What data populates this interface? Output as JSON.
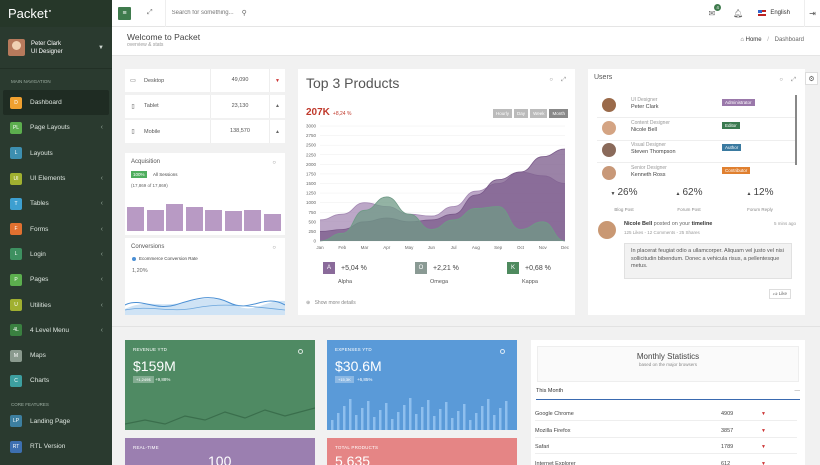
{
  "app": {
    "logo": "Packet",
    "logo_dot": "●"
  },
  "profile": {
    "name": "Peter Clark",
    "role": "UI Designer"
  },
  "sidebar": {
    "main_heading": "MAIN NAVIGATION",
    "items": [
      {
        "badge": "D",
        "label": "Dashboard",
        "color": "#f0a030",
        "active": true,
        "chev": ""
      },
      {
        "badge": "PL",
        "label": "Page Layouts",
        "color": "#5cae4e",
        "chev": "‹"
      },
      {
        "badge": "L",
        "label": "Layouts",
        "color": "#3d8fb0",
        "chev": ""
      },
      {
        "badge": "UI",
        "label": "UI Elements",
        "color": "#a0b030",
        "chev": "‹"
      },
      {
        "badge": "T",
        "label": "Tables",
        "color": "#3d9fd0",
        "chev": "‹"
      },
      {
        "badge": "F",
        "label": "Forms",
        "color": "#e07030",
        "chev": "‹"
      },
      {
        "badge": "L",
        "label": "Login",
        "color": "#3d9060",
        "chev": "‹"
      },
      {
        "badge": "P",
        "label": "Pages",
        "color": "#5cae4e",
        "chev": "‹"
      },
      {
        "badge": "U",
        "label": "Utilities",
        "color": "#a0b030",
        "chev": "‹"
      },
      {
        "badge": "4L",
        "label": "4 Level Menu",
        "color": "#3a8040",
        "chev": "‹"
      },
      {
        "badge": "M",
        "label": "Maps",
        "color": "#8a9a8e",
        "chev": ""
      },
      {
        "badge": "C",
        "label": "Charts",
        "color": "#3d9fa0",
        "chev": ""
      }
    ],
    "core_heading": "CORE FEATURES",
    "core_items": [
      {
        "badge": "LP",
        "label": "Landing Page",
        "color": "#3d7fa0"
      },
      {
        "badge": "RT",
        "label": "RTL Version",
        "color": "#3d6fb0"
      }
    ]
  },
  "topbar": {
    "search_placeholder": "Search for something...",
    "notif_count": "4",
    "language": "English",
    "menu_icon": "≡",
    "expand_icon": "⤢",
    "search_icon": "⚲",
    "toggle_icon": "⇥"
  },
  "header": {
    "title": "Welcome to Packet",
    "subtitle": "overview & stats",
    "crumb_home": "Home",
    "crumb_sep": "/",
    "crumb_current": "Dashboard"
  },
  "devices": [
    {
      "icon": "▭",
      "label": "Desktop",
      "value": "49,090",
      "trend": "▼"
    },
    {
      "icon": "▯",
      "label": "Tablet",
      "value": "23,130",
      "trend": "▲"
    },
    {
      "icon": "▯",
      "label": "Mobile",
      "value": "138,570",
      "trend": "▲"
    }
  ],
  "acquisition": {
    "title": "Acquisition",
    "pct": "100%",
    "label": "All Sessions",
    "count": "(17,869 of 17,869)",
    "bars": [
      0.62,
      0.55,
      0.72,
      0.63,
      0.55,
      0.52,
      0.55,
      0.44
    ]
  },
  "conversions": {
    "title": "Conversions",
    "legend": "Ecommerce Conversion Rate",
    "value": "1,20%"
  },
  "products": {
    "title": "Top 3 Products",
    "kpi": "207K",
    "kpi_change": "+8,24 %",
    "ranges": [
      "Hourly",
      "Day",
      "Week",
      "Month"
    ],
    "items": [
      {
        "badge": "A",
        "value": "+5,04 %",
        "name": "Alpha",
        "color": "#8a6a9a"
      },
      {
        "badge": "O",
        "value": "+2,21 %",
        "name": "Omega",
        "color": "#8a9a94"
      },
      {
        "badge": "K",
        "value": "+0,68 %",
        "name": "Kappa",
        "color": "#4e8a5e"
      }
    ],
    "show_more": "Show more details"
  },
  "chart_data": {
    "type": "area",
    "x": [
      "Jan",
      "Feb",
      "Mar",
      "Apr",
      "May",
      "Jun",
      "Jul",
      "Aug",
      "Sep",
      "Oct",
      "Nov",
      "Dec"
    ],
    "ylim": [
      0,
      3000
    ],
    "yticks": [
      "3000",
      "2750",
      "2500",
      "2250",
      "2000",
      "1750",
      "1500",
      "1250",
      "1000",
      "750",
      "500",
      "250",
      "0"
    ],
    "series": [
      {
        "values": [
          250,
          300,
          500,
          600,
          500,
          550,
          700,
          1200,
          1600,
          1800,
          2200,
          2400
        ],
        "color": "#7a5a8a"
      },
      {
        "values": [
          550,
          700,
          1000,
          900,
          700,
          650,
          900,
          1300,
          1500,
          1800,
          1700,
          1500
        ],
        "color": "#a58ab4"
      },
      {
        "values": [
          0,
          200,
          800,
          1150,
          700,
          300,
          550,
          850,
          900,
          300,
          500,
          0
        ],
        "color": "#6f9a86"
      }
    ]
  },
  "users": {
    "title": "Users",
    "list": [
      {
        "role": "UI Designer",
        "name": "Peter Clark",
        "badge": "Administrator",
        "badge_color": "#9a78aa"
      },
      {
        "role": "Content Designer",
        "name": "Nicole Bell",
        "badge": "Editor",
        "badge_color": "#3a7a50"
      },
      {
        "role": "Visual Designer",
        "name": "Steven Thompson",
        "badge": "Author",
        "badge_color": "#3a7aa0"
      },
      {
        "role": "Senior Designer",
        "name": "Kenneth Ross",
        "badge": "Contributor",
        "badge_color": "#e08030"
      }
    ],
    "stats": [
      {
        "arrow": "▼",
        "value": "26%",
        "label": "Blog Post"
      },
      {
        "arrow": "▲",
        "value": "62%",
        "label": "Forum Post"
      },
      {
        "arrow": "▲",
        "value": "12%",
        "label": "Forum Reply"
      }
    ],
    "post": {
      "author": "Nicole Bell",
      "action": "posted on your",
      "target": "timeline",
      "meta": "125 Likes - 12 Comments - 25 Shares",
      "time": "5 mins ago",
      "text": "In placerat feugiat odio a ullamcorper. Aliquam vel justo vel nisi sollicitudin bibendum. Donec a vehicula risus, a pellentesque metus.",
      "like": "Like"
    }
  },
  "tiles": [
    {
      "label": "REVENUE YTD",
      "value": "$159M",
      "pill": "+1,249$",
      "change": "+9,88%",
      "color": "#4f8a63"
    },
    {
      "label": "EXPENSES YTD",
      "value": "$30.6M",
      "pill": "+15,3K",
      "change": "+6,85%",
      "color": "#5a9ad8"
    },
    {
      "label": "REAL-TIME",
      "value": "100",
      "color": "#9b7fb0"
    },
    {
      "label": "TOTAL PRODUCTS",
      "value": "5.635",
      "color": "#e58585"
    }
  ],
  "monthly": {
    "title": "Monthly Statistics",
    "subtitle": "based on the major browsers",
    "period": "This Month",
    "collapse": "—",
    "rows": [
      {
        "name": "Google Chrome",
        "value": "4909",
        "arrow": "▼"
      },
      {
        "name": "Mozilla Firefox",
        "value": "3857",
        "arrow": "▼"
      },
      {
        "name": "Safari",
        "value": "1789",
        "arrow": "▼"
      },
      {
        "name": "Internet Explorer",
        "value": "612",
        "arrow": "▼"
      }
    ]
  }
}
